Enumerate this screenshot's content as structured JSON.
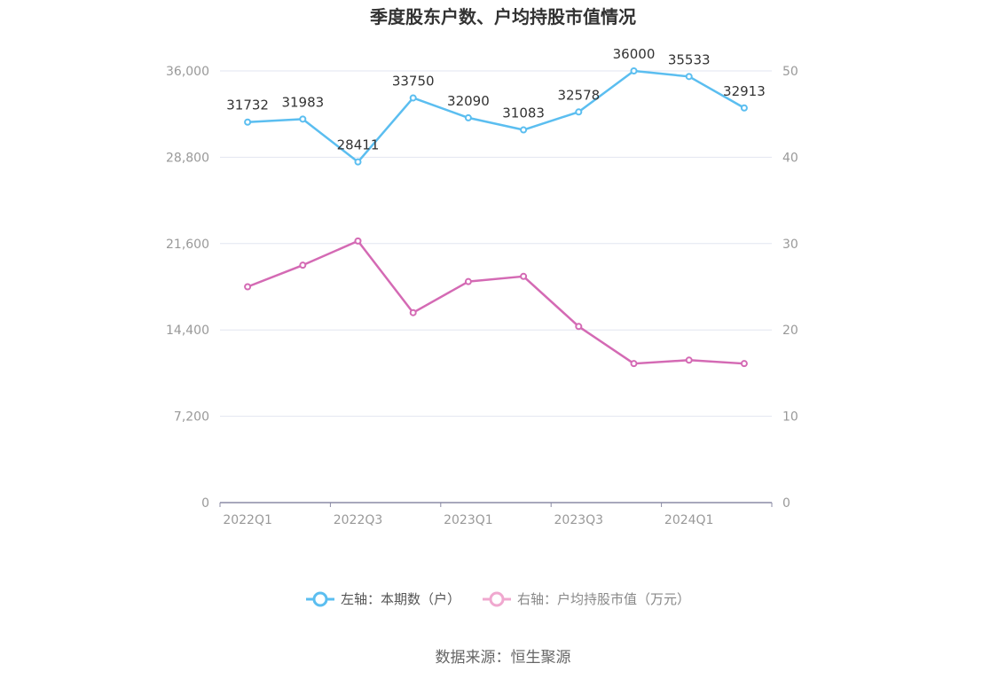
{
  "colors": {
    "left_series": "#5bbef0",
    "right_series": "#d46ab4",
    "right_legend": "#f0a8cf",
    "grid": "#e2e5f0",
    "axis": "#8c8ca6"
  },
  "source_text": "数据来源：恒生聚源",
  "chart_data": {
    "type": "line",
    "title": "季度股东户数、户均持股市值情况",
    "categories": [
      "2022Q1",
      "2022Q2",
      "2022Q3",
      "2022Q4",
      "2023Q1",
      "2023Q2",
      "2023Q3",
      "2023Q4",
      "2024Q1",
      "2024Q2"
    ],
    "x_tick_labels": [
      "2022Q1",
      "2022Q3",
      "2023Q1",
      "2023Q3",
      "2024Q1"
    ],
    "left_axis": {
      "ylim": [
        0,
        36000
      ],
      "ticks": [
        "0",
        "7,200",
        "14,400",
        "21,600",
        "28,800",
        "36,000"
      ]
    },
    "right_axis": {
      "ylim": [
        0,
        50
      ],
      "ticks": [
        "0",
        "10",
        "20",
        "30",
        "40",
        "50"
      ]
    },
    "grid": true,
    "legend_position": "bottom",
    "series": [
      {
        "name": "左轴：本期数（户）",
        "axis": "left",
        "values": [
          31732,
          31983,
          28411,
          33750,
          32090,
          31083,
          32578,
          36000,
          35533,
          32913
        ],
        "labels": [
          "31732",
          "31983",
          "28411",
          "33750",
          "32090",
          "31083",
          "32578",
          "36000",
          "35533",
          "32913"
        ]
      },
      {
        "name": "右轴：户均持股市值（万元）",
        "axis": "right",
        "values": [
          25.0,
          27.5,
          30.3,
          22.0,
          25.6,
          26.2,
          20.4,
          16.1,
          16.5,
          16.1
        ]
      }
    ]
  }
}
